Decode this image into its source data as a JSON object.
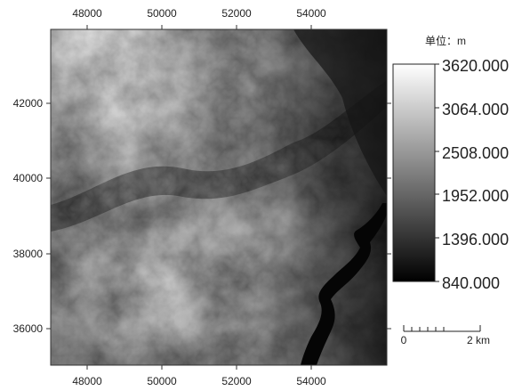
{
  "map": {
    "x_ticks": [
      "48000",
      "50000",
      "52000",
      "54000"
    ],
    "y_ticks": [
      "42000",
      "40000",
      "38000",
      "36000"
    ]
  },
  "legend": {
    "unit_label": "单位：m",
    "values": [
      "3620.000",
      "3064.000",
      "2508.000",
      "1952.000",
      "1396.000",
      "840.000"
    ],
    "colors": {
      "high": "#ffffff",
      "low": "#000000"
    }
  },
  "scale_bar": {
    "zero_label": "0",
    "end_label": "2 km"
  }
}
